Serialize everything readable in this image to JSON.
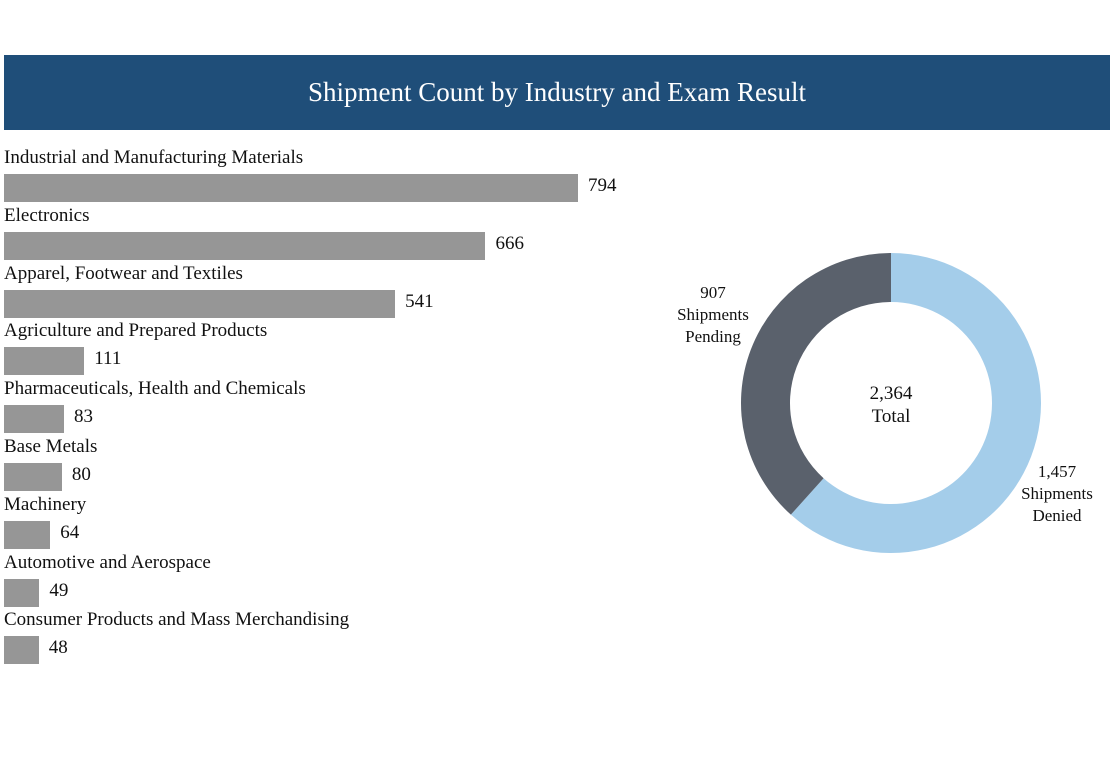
{
  "colors": {
    "header_bg": "#1f4e79",
    "bar": "#969696",
    "denied": "#a4cdea",
    "pending": "#5a616c"
  },
  "chart_data": [
    {
      "type": "bar",
      "orientation": "horizontal",
      "title": "Shipment Count by Industry and Exam Result",
      "categories": [
        "Industrial and Manufacturing Materials",
        "Electronics",
        "Apparel, Footwear and Textiles",
        "Agriculture and Prepared Products",
        "Pharmaceuticals, Health and Chemicals",
        "Base Metals",
        "Machinery",
        "Automotive and Aerospace",
        "Consumer Products and Mass Merchandising"
      ],
      "values": [
        794,
        666,
        541,
        111,
        83,
        80,
        64,
        49,
        48
      ],
      "xlim": [
        0,
        794
      ],
      "grid": false
    },
    {
      "type": "pie",
      "style": "donut",
      "center_label": {
        "value": "2,364",
        "text": "Total"
      },
      "slices": [
        {
          "name": "Shipments Denied",
          "value": 1457,
          "label_value": "1,457",
          "label_lines": [
            "Shipments",
            "Denied"
          ]
        },
        {
          "name": "Shipments Pending",
          "value": 907,
          "label_value": "907",
          "label_lines": [
            "Shipments",
            "Pending"
          ]
        }
      ]
    }
  ]
}
